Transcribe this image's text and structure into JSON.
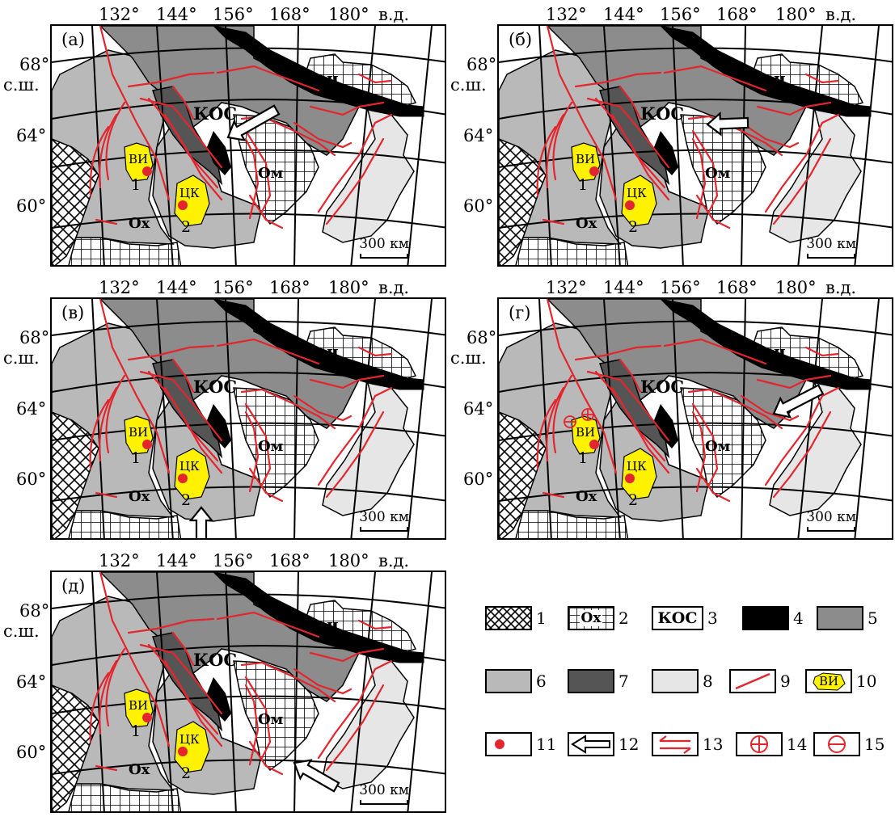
{
  "lon_labels": [
    "132°",
    "144°",
    "156°",
    "168°",
    "180°",
    "в.д."
  ],
  "lat_labels": [
    "68°",
    "с.ш.",
    "64°",
    "60°"
  ],
  "scale_label": "300 км",
  "map_labels": {
    "kos": "КОС",
    "om": "Ом",
    "oh": "Ох",
    "ch": "ч",
    "vi": "ВИ",
    "ck": "ЦК",
    "n1": "1",
    "n2": "2"
  },
  "panels": [
    {
      "letter": "(а)",
      "arrow": "from north-east toward south-west (central)"
    },
    {
      "letter": "(б)",
      "arrow": "from east toward west (central)"
    },
    {
      "letter": "(в)",
      "arrow": "from south toward north"
    },
    {
      "letter": "(г)",
      "arrow": "from north-east toward south-west (north-east)"
    },
    {
      "letter": "(д)",
      "arrow": "from south-east toward north-west"
    }
  ],
  "legend": [
    {
      "num": "1",
      "kind": "cross-hatch"
    },
    {
      "num": "2",
      "kind": "grid",
      "text": "Ох"
    },
    {
      "num": "3",
      "kind": "text",
      "text": "КОС"
    },
    {
      "num": "4",
      "kind": "fill",
      "color": "#000000"
    },
    {
      "num": "5",
      "kind": "fill",
      "color": "#8c8c8c"
    },
    {
      "num": "6",
      "kind": "fill",
      "color": "#b9b9b9"
    },
    {
      "num": "7",
      "kind": "fill",
      "color": "#555555"
    },
    {
      "num": "8",
      "kind": "fill",
      "color": "#e6e6e6"
    },
    {
      "num": "9",
      "kind": "red-line",
      "color": "#e3262e"
    },
    {
      "num": "10",
      "kind": "yellow-polygon",
      "text": "ВИ",
      "color": "#fff200"
    },
    {
      "num": "11",
      "kind": "red-dot",
      "color": "#e3262e"
    },
    {
      "num": "12",
      "kind": "arrow"
    },
    {
      "num": "13",
      "kind": "shear-arrows"
    },
    {
      "num": "14",
      "kind": "plus"
    },
    {
      "num": "15",
      "kind": "minus"
    }
  ]
}
